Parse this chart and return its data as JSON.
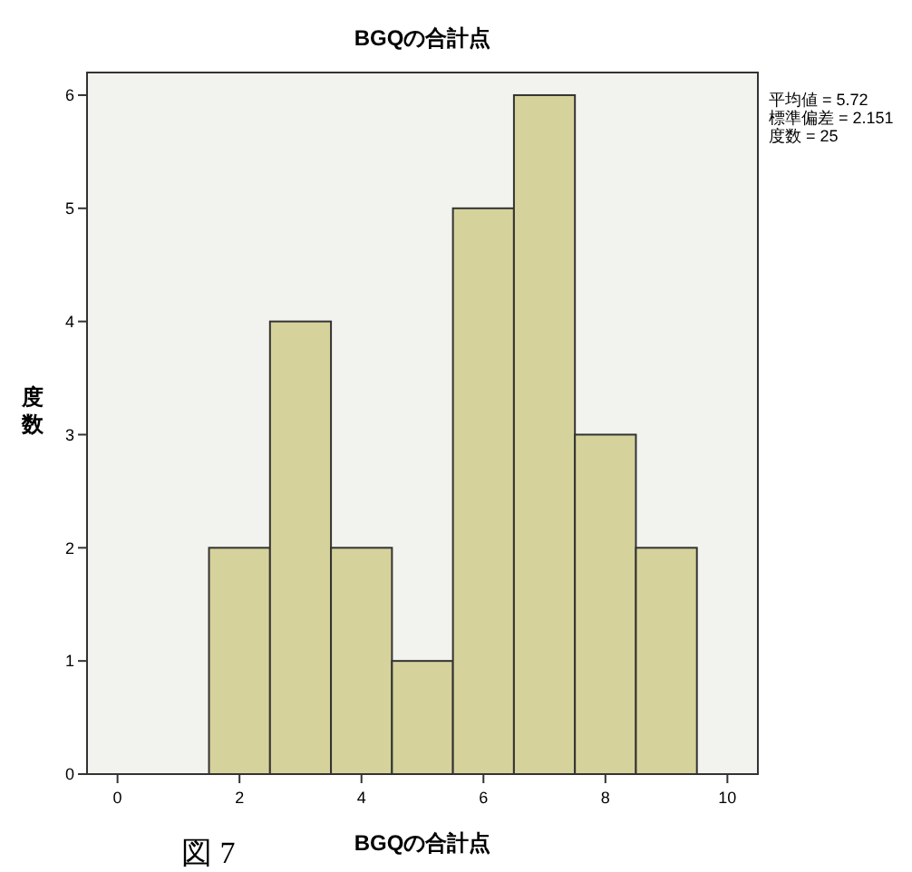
{
  "chart_data": {
    "type": "histogram",
    "title": "BGQの合計点",
    "xlabel": "BGQの合計点",
    "ylabel": "度数",
    "bins": [
      1.5,
      2.5,
      3.5,
      4.5,
      5.5,
      6.5,
      7.5,
      8.5,
      9.5
    ],
    "values": [
      2,
      4,
      2,
      1,
      5,
      6,
      3,
      2
    ],
    "color": "#d6d29c",
    "xlim": [
      -0.5,
      10.5
    ],
    "xticks": [
      0,
      2,
      4,
      6,
      8,
      10
    ],
    "ylim": [
      0,
      6.2
    ],
    "yticks": [
      0,
      1,
      2,
      3,
      4,
      5,
      6
    ],
    "annotations": [
      "平均値 = 5.72",
      "標準偏差 = 2.151",
      "度数 = 25",
      "図 7"
    ]
  }
}
